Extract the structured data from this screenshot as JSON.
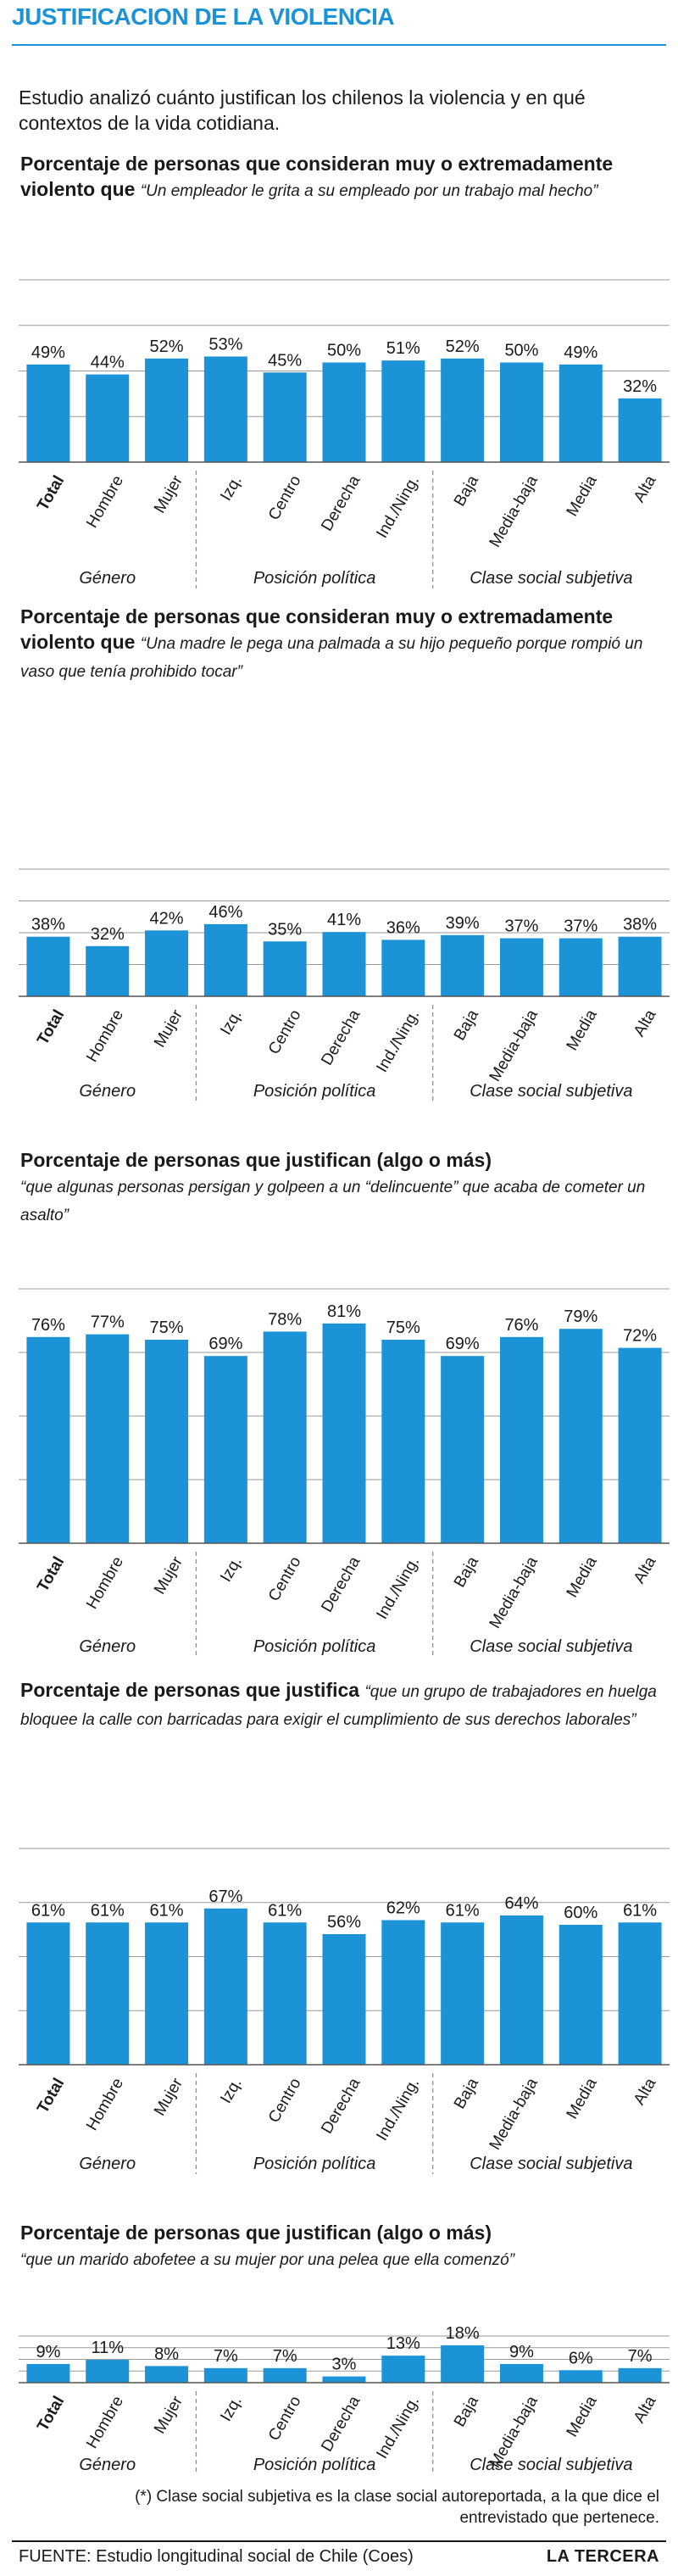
{
  "title": "JUSTIFICACION DE LA VIOLENCIA",
  "intro": "Estudio analizó cuánto justifican los chilenos la violencia y en qué contextos de la vida cotidiana.",
  "colors": {
    "bar": "#1b93d6",
    "title": "#1b93d6"
  },
  "chart_data": [
    {
      "type": "bar",
      "title_bold": "Porcentaje de personas que consideran muy o extremadamente violento que",
      "title_italic": "“Un empleador le grita a su empleado por un trabajo mal hecho”",
      "categories": [
        "Total",
        "Hombre",
        "Mujer",
        "Izq.",
        "Centro",
        "Derecha",
        "Ind./Ning.",
        "Baja",
        "Media-baja",
        "Media",
        "Alta"
      ],
      "values": [
        49,
        44,
        52,
        53,
        45,
        50,
        51,
        52,
        50,
        49,
        32
      ],
      "value_labels": [
        "49%",
        "44%",
        "52%",
        "53%",
        "45%",
        "50%",
        "51%",
        "52%",
        "50%",
        "49%",
        "32%"
      ],
      "groups": [
        "Género",
        "Posición política",
        "Clase social subjetiva"
      ],
      "ylim": [
        0,
        100
      ]
    },
    {
      "type": "bar",
      "title_bold": "Porcentaje de personas que consideran muy o extremadamente violento que",
      "title_italic": "“Una madre le pega una palmada a su hijo pequeño porque rompió un vaso que tenía prohibido tocar”",
      "categories": [
        "Total",
        "Hombre",
        "Mujer",
        "Izq.",
        "Centro",
        "Derecha",
        "Ind./Ning.",
        "Baja",
        "Media-baja",
        "Media",
        "Alta"
      ],
      "values": [
        38,
        32,
        42,
        46,
        35,
        41,
        36,
        39,
        37,
        37,
        38
      ],
      "value_labels": [
        "38%",
        "32%",
        "42%",
        "46%",
        "35%",
        "41%",
        "36%",
        "39%",
        "37%",
        "37%",
        "38%"
      ],
      "groups": [
        "Género",
        "Posición política",
        "Clase social subjetiva"
      ],
      "ylim": [
        0,
        100
      ]
    },
    {
      "type": "bar",
      "title_bold": "Porcentaje de personas que justifican (algo o más)",
      "title_italic": "“que algunas personas persigan y golpeen a un “delincuente” que acaba de cometer un asalto”",
      "categories": [
        "Total",
        "Hombre",
        "Mujer",
        "Izq.",
        "Centro",
        "Derecha",
        "Ind./Ning.",
        "Baja",
        "Media-baja",
        "Media",
        "Alta"
      ],
      "values": [
        76,
        77,
        75,
        69,
        78,
        81,
        75,
        69,
        76,
        79,
        72
      ],
      "value_labels": [
        "76%",
        "77%",
        "75%",
        "69%",
        "78%",
        "81%",
        "75%",
        "69%",
        "76%",
        "79%",
        "72%"
      ],
      "groups": [
        "Género",
        "Posición política",
        "Clase social subjetiva"
      ],
      "ylim": [
        0,
        100
      ]
    },
    {
      "type": "bar",
      "title_bold": "Porcentaje de personas que justifica",
      "title_italic": "“que un grupo de trabajadores en huelga bloquee la calle con barricadas para exigir el cumplimiento de sus derechos laborales”",
      "categories": [
        "Total",
        "Hombre",
        "Mujer",
        "Izq.",
        "Centro",
        "Derecha",
        "Ind./Ning.",
        "Baja",
        "Media-baja",
        "Media",
        "Alta"
      ],
      "values": [
        61,
        61,
        61,
        67,
        61,
        56,
        62,
        61,
        64,
        60,
        61
      ],
      "value_labels": [
        "61%",
        "61%",
        "61%",
        "67%",
        "61%",
        "56%",
        "62%",
        "61%",
        "64%",
        "60%",
        "61%"
      ],
      "groups": [
        "Género",
        "Posición política",
        "Clase social subjetiva"
      ],
      "ylim": [
        0,
        100
      ]
    },
    {
      "type": "bar",
      "title_bold": "Porcentaje de personas que justifican (algo o más)",
      "title_italic": "“que un marido abofetee a su mujer por una pelea que ella comenzó”",
      "categories": [
        "Total",
        "Hombre",
        "Mujer",
        "Izq.",
        "Centro",
        "Derecha",
        "Ind./Ning.",
        "Baja",
        "Media-baja",
        "Media",
        "Alta"
      ],
      "values": [
        9,
        11,
        8,
        7,
        7,
        3,
        13,
        18,
        9,
        6,
        7
      ],
      "value_labels": [
        "9%",
        "11%",
        "8%",
        "7%",
        "7%",
        "3%",
        "13%",
        "18%",
        "9%",
        "6%",
        "7%"
      ],
      "groups": [
        "Género",
        "Posición política",
        "Clase social subjetiva"
      ],
      "ylim": [
        0,
        100
      ]
    }
  ],
  "footnote": "(*) Clase social subjetiva es la clase social autoreportada, a la que dice el entrevistado que pertenece.",
  "source": "FUENTE: Estudio longitudinal social de Chile (Coes)",
  "brand": "LA TERCERA"
}
